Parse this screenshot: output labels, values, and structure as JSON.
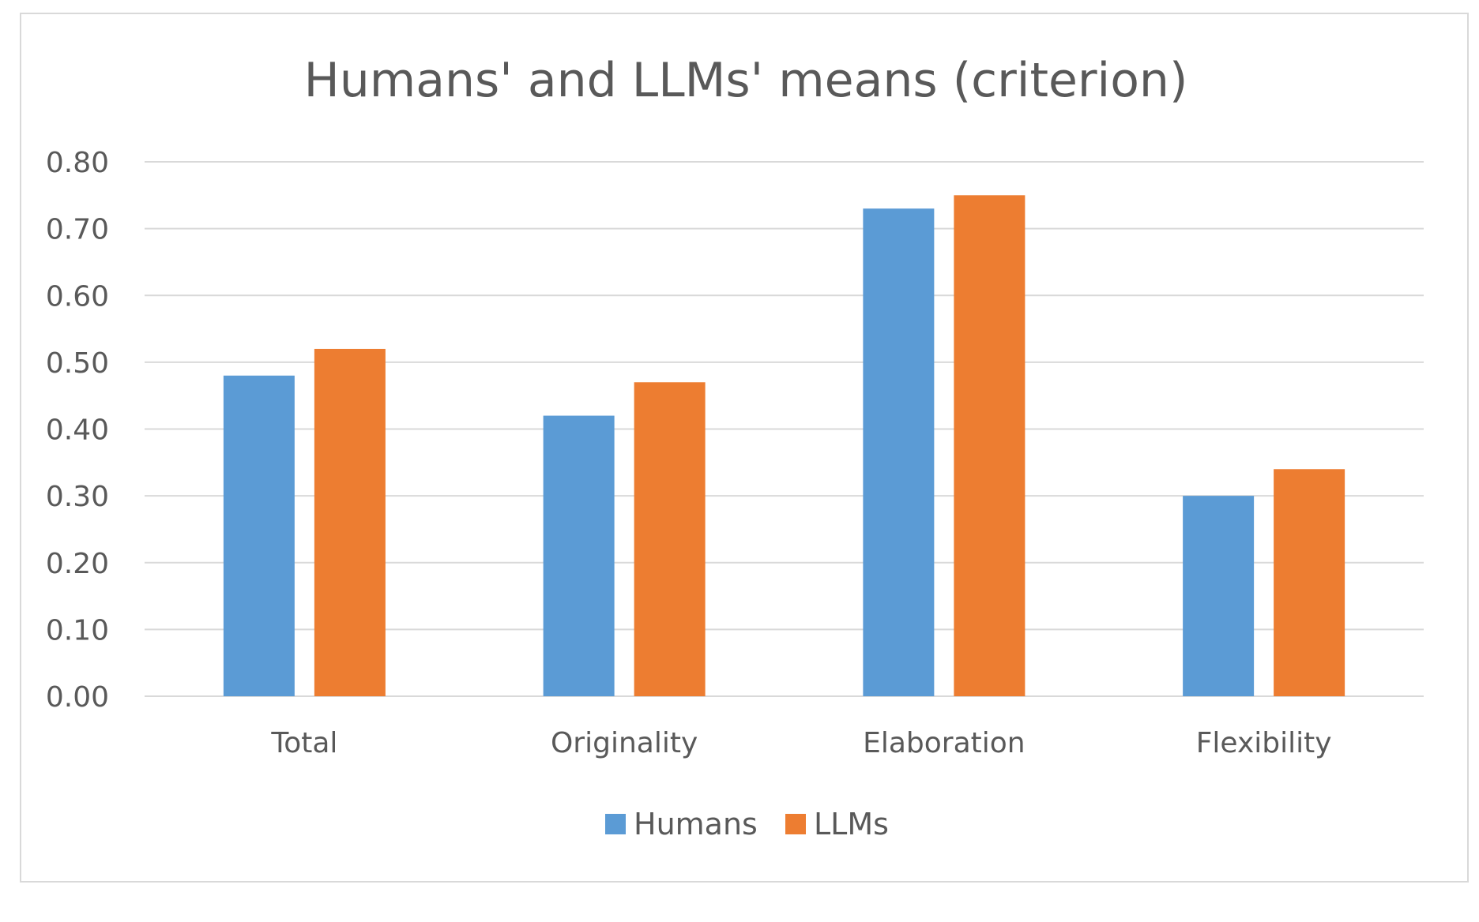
{
  "chart_data": {
    "type": "bar",
    "title": "Humans' and LLMs' means (criterion)",
    "categories": [
      "Total",
      "Originality",
      "Elaboration",
      "Flexibility"
    ],
    "series": [
      {
        "name": "Humans",
        "color": "#5b9bd5",
        "values": [
          0.48,
          0.42,
          0.73,
          0.3
        ]
      },
      {
        "name": "LLMs",
        "color": "#ed7d31",
        "values": [
          0.52,
          0.47,
          0.75,
          0.34
        ]
      }
    ],
    "yticks": [
      "0.00",
      "0.10",
      "0.20",
      "0.30",
      "0.40",
      "0.50",
      "0.60",
      "0.70",
      "0.80"
    ],
    "ylim": [
      0,
      0.8
    ],
    "grid": true,
    "legend_position": "bottom"
  }
}
